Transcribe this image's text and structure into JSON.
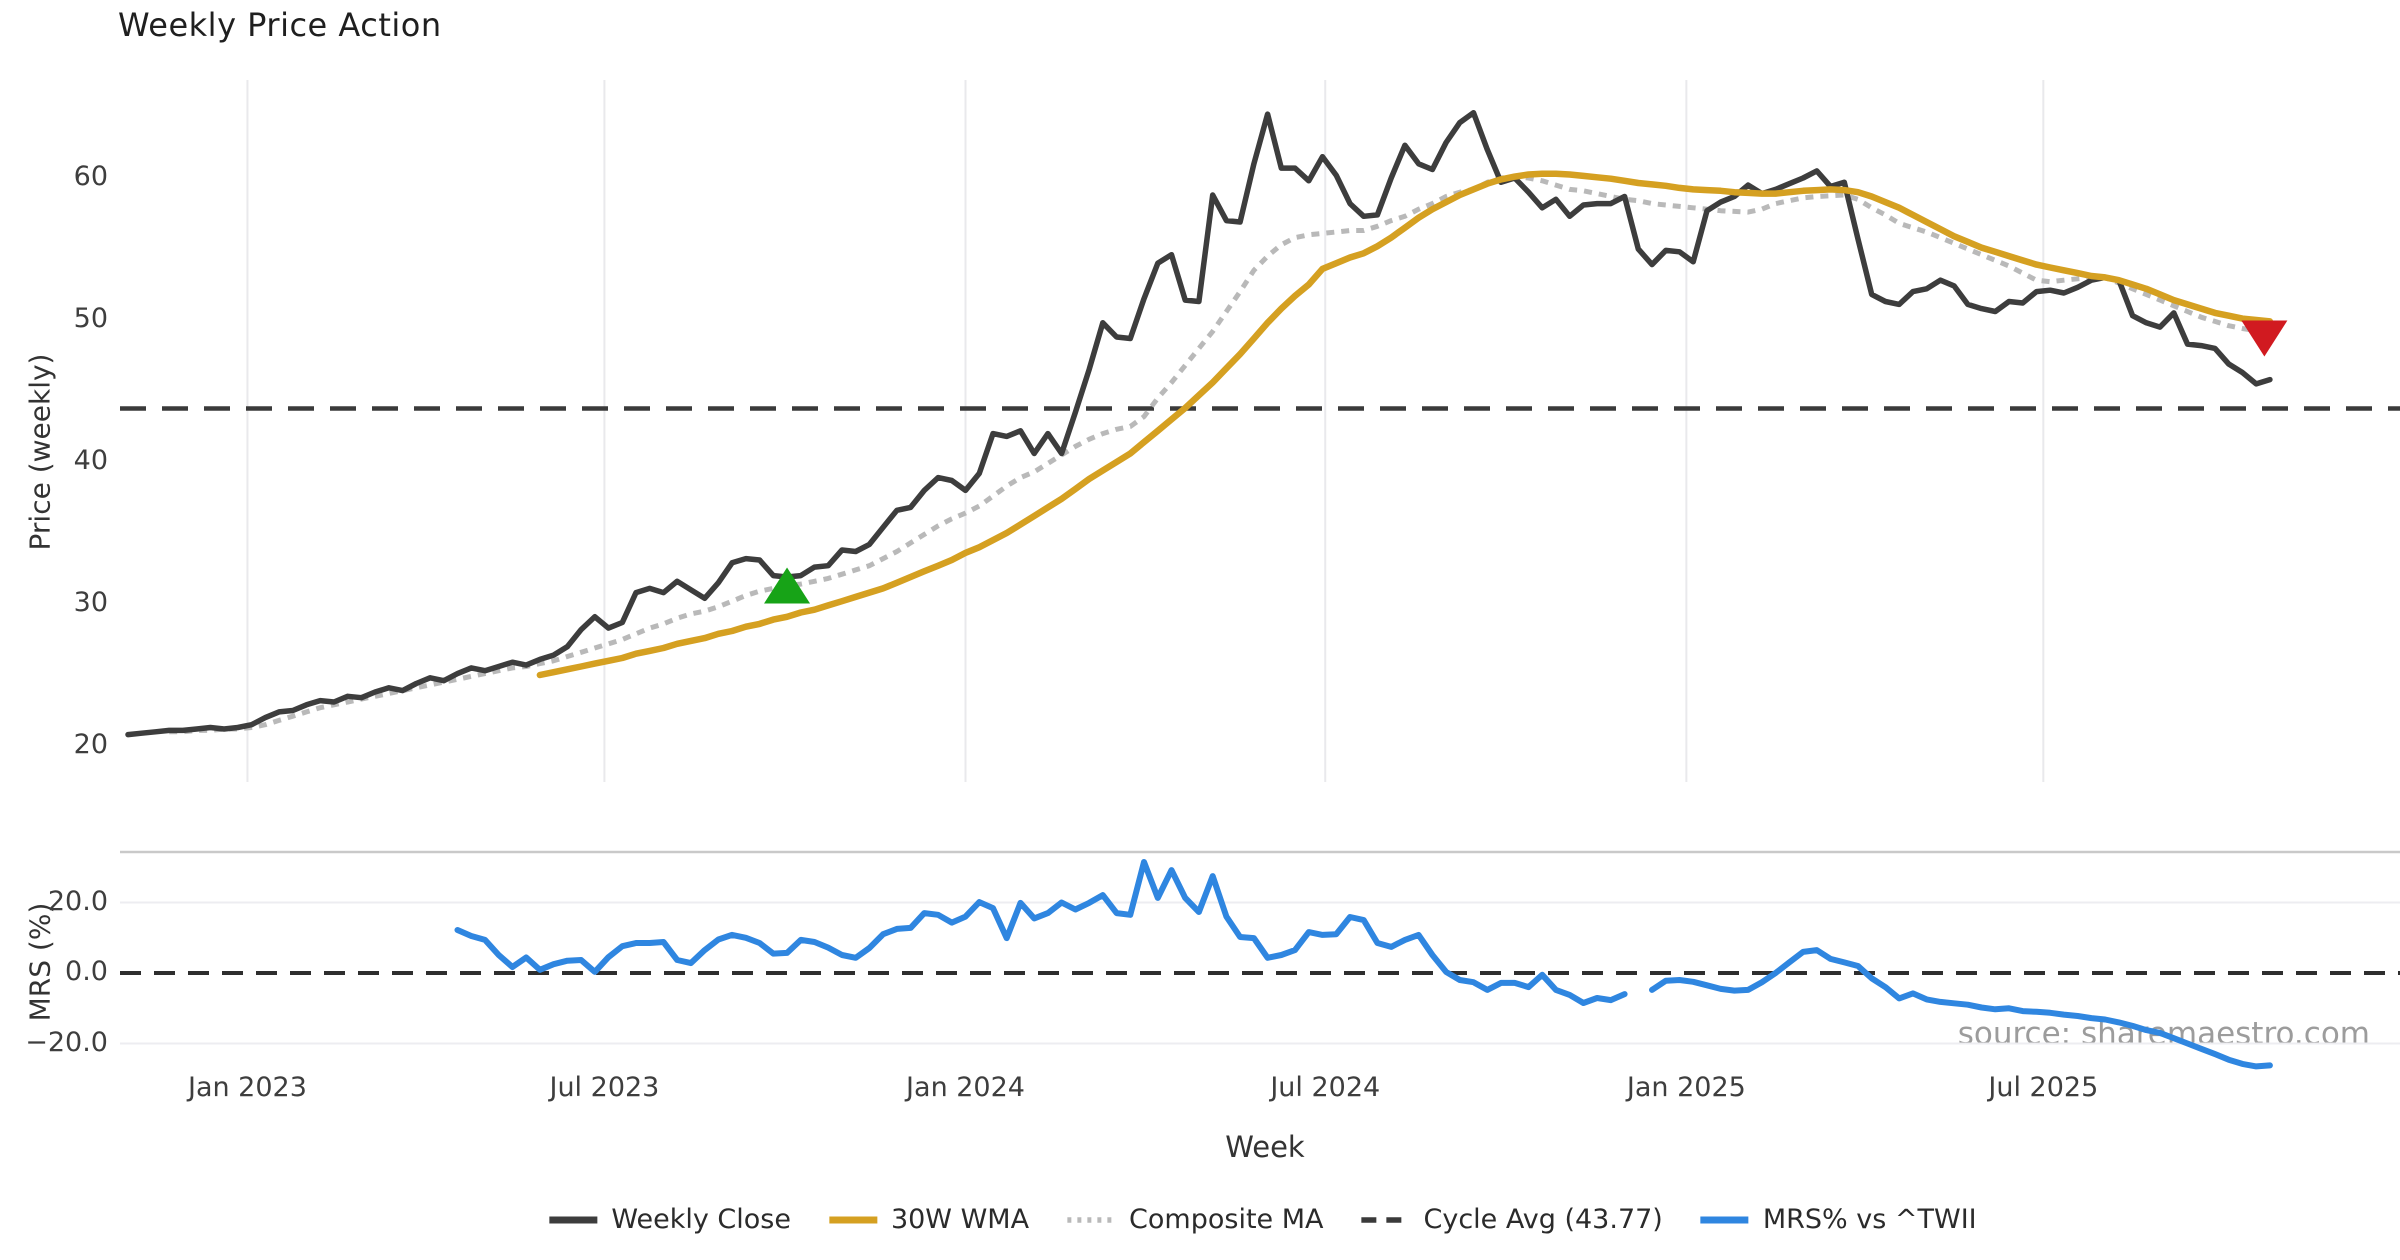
{
  "title": "Weekly Price Action",
  "source_text": "source: sharemaestro.com",
  "price_panel": {
    "y_label": "Price (weekly)",
    "y_ticks": [
      {
        "label": "20",
        "value": 20
      },
      {
        "label": "30",
        "value": 30
      },
      {
        "label": "40",
        "value": 40
      },
      {
        "label": "50",
        "value": 50
      },
      {
        "label": "60",
        "value": 60
      }
    ]
  },
  "mrs_panel": {
    "y_label": "MRS (%)",
    "y_ticks": [
      {
        "label": "20.0",
        "value": 20
      },
      {
        "label": "0.0",
        "value": 0
      },
      {
        "label": "−20.0",
        "value": -20
      }
    ]
  },
  "x_axis": {
    "label": "Week",
    "ticks": [
      {
        "label": "Jan 2023",
        "week": 8.7
      },
      {
        "label": "Jul 2023",
        "week": 34.7
      },
      {
        "label": "Jan 2024",
        "week": 61.0
      },
      {
        "label": "Jul 2024",
        "week": 87.2
      },
      {
        "label": "Jan 2025",
        "week": 113.5
      },
      {
        "label": "Jul 2025",
        "week": 139.5
      }
    ]
  },
  "legend": [
    {
      "key": "weekly-close",
      "label": "Weekly Close",
      "color": "#3d3d3d",
      "style": "solid"
    },
    {
      "key": "30w-wma",
      "label": "30W WMA",
      "color": "#d5a021",
      "style": "solid"
    },
    {
      "key": "composite-ma",
      "label": "Composite MA",
      "color": "#b9b9b9",
      "style": "dotted"
    },
    {
      "key": "cycle-avg",
      "label": "Cycle Avg (43.77)",
      "color": "#3a3a3a",
      "style": "dashed"
    },
    {
      "key": "mrs",
      "label": "MRS% vs ^TWII",
      "color": "#2f86e0",
      "style": "solid"
    }
  ],
  "chart_data": [
    {
      "type": "line",
      "title": "Weekly Price Action",
      "xlabel": "Week",
      "ylabel": "Price (weekly)",
      "x_unit": "week_index",
      "ylim": [
        17.5,
        67
      ],
      "grid": "vertical-only",
      "cycle_avg": 43.77,
      "series": [
        {
          "name": "Weekly Close",
          "color": "#3d3d3d",
          "width": 5.5,
          "dash": null,
          "start_week": 0,
          "values": [
            20.8,
            20.9,
            21.0,
            21.1,
            21.1,
            21.2,
            21.3,
            21.2,
            21.3,
            21.5,
            22.0,
            22.4,
            22.5,
            22.9,
            23.2,
            23.1,
            23.5,
            23.4,
            23.8,
            24.1,
            23.9,
            24.4,
            24.8,
            24.6,
            25.1,
            25.5,
            25.3,
            25.6,
            25.9,
            25.7,
            26.1,
            26.4,
            27.0,
            28.2,
            29.1,
            28.3,
            28.7,
            30.8,
            31.1,
            30.8,
            31.6,
            31.0,
            30.4,
            31.5,
            32.9,
            33.2,
            33.1,
            32.0,
            31.9,
            32.0,
            32.6,
            32.7,
            33.8,
            33.7,
            34.2,
            35.4,
            36.6,
            36.8,
            38.0,
            38.9,
            38.7,
            38.0,
            39.2,
            42.0,
            41.8,
            42.2,
            40.6,
            42.0,
            40.6,
            43.5,
            46.5,
            49.8,
            48.8,
            48.7,
            51.5,
            54.0,
            54.6,
            51.4,
            51.3,
            58.8,
            57.0,
            56.9,
            61.0,
            64.5,
            60.7,
            60.7,
            59.8,
            61.5,
            60.2,
            58.2,
            57.3,
            57.4,
            60.0,
            62.3,
            61.0,
            60.6,
            62.5,
            63.9,
            64.6,
            62.0,
            59.7,
            60.0,
            59.0,
            57.9,
            58.5,
            57.3,
            58.1,
            58.2,
            58.2,
            58.7,
            55.0,
            53.9,
            54.9,
            54.8,
            54.1,
            57.7,
            58.3,
            58.7,
            59.5,
            58.9,
            59.2,
            59.6,
            60.0,
            60.5,
            59.4,
            59.7,
            55.7,
            51.8,
            51.3,
            51.1,
            52.0,
            52.2,
            52.8,
            52.4,
            51.1,
            50.8,
            50.6,
            51.3,
            51.2,
            52.0,
            52.1,
            51.9,
            52.3,
            52.8,
            53.0,
            52.8,
            50.3,
            49.8,
            49.5,
            50.5,
            48.3,
            48.2,
            48.0,
            46.9,
            46.3,
            45.5,
            45.8
          ]
        },
        {
          "name": "30W WMA",
          "color": "#d5a021",
          "width": 6.5,
          "dash": null,
          "start_week": 30,
          "values": [
            25.0,
            25.2,
            25.4,
            25.6,
            25.8,
            26.0,
            26.2,
            26.5,
            26.7,
            26.9,
            27.2,
            27.4,
            27.6,
            27.9,
            28.1,
            28.4,
            28.6,
            28.9,
            29.1,
            29.4,
            29.6,
            29.9,
            30.2,
            30.5,
            30.8,
            31.1,
            31.5,
            31.9,
            32.3,
            32.7,
            33.1,
            33.6,
            34.0,
            34.5,
            35.0,
            35.6,
            36.2,
            36.8,
            37.4,
            38.1,
            38.8,
            39.4,
            40.0,
            40.6,
            41.4,
            42.2,
            43.0,
            43.8,
            44.7,
            45.6,
            46.6,
            47.6,
            48.7,
            49.8,
            50.8,
            51.7,
            52.5,
            53.6,
            54.0,
            54.4,
            54.7,
            55.2,
            55.8,
            56.5,
            57.2,
            57.8,
            58.3,
            58.8,
            59.2,
            59.6,
            59.9,
            60.1,
            60.25,
            60.3,
            60.3,
            60.25,
            60.15,
            60.05,
            59.95,
            59.8,
            59.65,
            59.55,
            59.45,
            59.3,
            59.2,
            59.15,
            59.1,
            59.0,
            58.95,
            58.9,
            58.9,
            59.0,
            59.1,
            59.15,
            59.2,
            59.15,
            59.0,
            58.7,
            58.3,
            57.9,
            57.4,
            56.9,
            56.4,
            55.9,
            55.5,
            55.1,
            54.8,
            54.5,
            54.2,
            53.9,
            53.7,
            53.5,
            53.3,
            53.1,
            53.0,
            52.8,
            52.5,
            52.2,
            51.8,
            51.4,
            51.1,
            50.8,
            50.5,
            50.3,
            50.1,
            50.0,
            49.9
          ]
        },
        {
          "name": "Composite MA",
          "color": "#b9b9b9",
          "width": 5,
          "dash": "8 7",
          "start_week": 3,
          "values": [
            21.0,
            21.0,
            21.1,
            21.1,
            21.2,
            21.2,
            21.3,
            21.5,
            21.8,
            22.1,
            22.4,
            22.7,
            22.9,
            23.1,
            23.3,
            23.5,
            23.7,
            23.9,
            24.1,
            24.3,
            24.5,
            24.7,
            24.9,
            25.1,
            25.3,
            25.5,
            25.6,
            25.8,
            26.0,
            26.3,
            26.6,
            26.9,
            27.2,
            27.5,
            27.9,
            28.3,
            28.6,
            29.0,
            29.3,
            29.5,
            29.8,
            30.2,
            30.6,
            30.9,
            31.1,
            31.3,
            31.4,
            31.6,
            31.8,
            32.1,
            32.4,
            32.7,
            33.2,
            33.7,
            34.3,
            34.9,
            35.5,
            36.0,
            36.4,
            36.9,
            37.6,
            38.3,
            38.9,
            39.3,
            39.9,
            40.5,
            41.1,
            41.6,
            42.0,
            42.3,
            42.5,
            43.2,
            44.5,
            45.6,
            46.8,
            48.0,
            49.2,
            50.6,
            52.0,
            53.5,
            54.5,
            55.3,
            55.8,
            56.0,
            56.1,
            56.2,
            56.3,
            56.3,
            56.6,
            57.0,
            57.3,
            57.8,
            58.2,
            58.7,
            59.0,
            59.2,
            59.7,
            60.0,
            60.1,
            60.0,
            59.8,
            59.5,
            59.2,
            59.1,
            58.9,
            58.7,
            58.5,
            58.4,
            58.2,
            58.1,
            58.0,
            57.9,
            57.8,
            57.7,
            57.65,
            57.6,
            57.8,
            58.2,
            58.4,
            58.6,
            58.7,
            58.75,
            58.8,
            58.5,
            57.9,
            57.4,
            56.8,
            56.5,
            56.2,
            55.8,
            55.4,
            55.0,
            54.6,
            54.2,
            53.8,
            53.3,
            52.8,
            52.7,
            52.8,
            52.9,
            53.0,
            53.0,
            52.6,
            52.2,
            51.8,
            51.4,
            51.0,
            50.6,
            50.2,
            49.9,
            49.6,
            49.4,
            49.25,
            49.2
          ]
        }
      ],
      "markers": [
        {
          "type": "buy-signal",
          "shape": "triangle-up",
          "week": 48,
          "value": 31.3,
          "color": "#17a317"
        },
        {
          "type": "sell-signal",
          "shape": "triangle-down",
          "week": 155.6,
          "value": 48.7,
          "color": "#d11a20"
        }
      ]
    },
    {
      "type": "line",
      "title": "MRS% vs ^TWII",
      "xlabel": "Week",
      "ylabel": "MRS (%)",
      "x_unit": "week_index",
      "ylim": [
        -29,
        34
      ],
      "zero_line": 0,
      "series": [
        {
          "name": "MRS% vs ^TWII",
          "color": "#2f86e0",
          "width": 6,
          "dash": null,
          "start_week": 24,
          "values": [
            12.2,
            10.5,
            9.4,
            5.1,
            1.7,
            4.4,
            0.9,
            2.5,
            3.5,
            3.7,
            0.3,
            4.5,
            7.6,
            8.5,
            8.5,
            8.8,
            3.7,
            2.8,
            6.5,
            9.5,
            10.8,
            10.0,
            8.5,
            5.5,
            5.7,
            9.4,
            8.8,
            7.2,
            5.1,
            4.3,
            7.1,
            11.0,
            12.5,
            12.8,
            17.0,
            16.5,
            14.3,
            16.0,
            20.1,
            18.4,
            9.9,
            19.9,
            15.5,
            17.0,
            20.0,
            18.0,
            19.9,
            22.1,
            17.0,
            16.5,
            31.5,
            21.3,
            29.2,
            21.3,
            17.3,
            27.5,
            16.0,
            10.2,
            9.9,
            4.3,
            5.1,
            6.5,
            11.6,
            10.8,
            11.0,
            15.9,
            15.0,
            8.5,
            7.4,
            9.4,
            10.8,
            5.1,
            0.3,
            -2.0,
            -2.6,
            -4.8,
            -2.8,
            -2.8,
            -4.0,
            -0.5,
            -4.8,
            -6.2,
            -8.5,
            -7.1,
            -7.7,
            -6.0,
            null,
            -4.8,
            -2.2,
            -2.0,
            -2.5,
            -3.5,
            -4.5,
            -5.0,
            -4.8,
            -2.6,
            0.0,
            3.0,
            6.0,
            6.5,
            4.0,
            3.0,
            2.0,
            -1.5,
            -4.0,
            -7.2,
            -5.8,
            -7.5,
            -8.2,
            -8.6,
            -9.0,
            -9.8,
            -10.3,
            -10.0,
            -10.8,
            -11.0,
            -11.3,
            -11.8,
            -12.2,
            -12.8,
            -13.2,
            -14.0,
            -15.0,
            -16.2,
            -17.0,
            -18.5,
            -20.0,
            -21.5,
            -23.0,
            -24.6,
            -25.8,
            -26.5,
            -26.2
          ]
        }
      ]
    }
  ]
}
